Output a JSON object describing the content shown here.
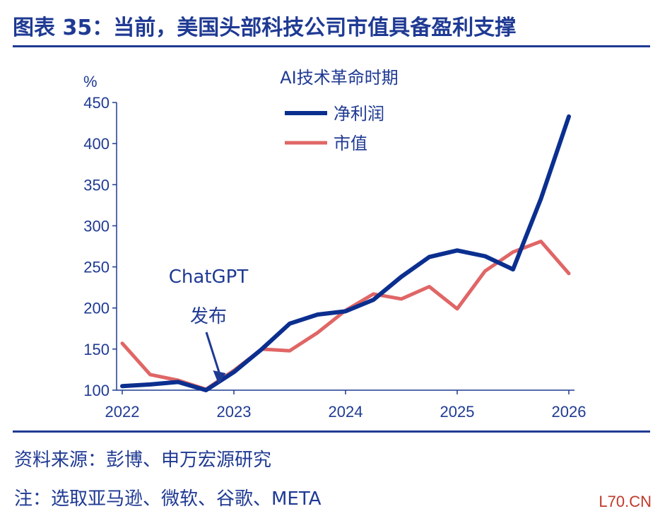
{
  "figure_title": "图表 35：当前，美国头部科技公司市值具备盈利支撑",
  "footer": {
    "source": "资料来源：彭博、申万宏源研究",
    "note": "注：选取亚马逊、微软、谷歌、META",
    "watermark": "L70.CN"
  },
  "colors": {
    "accent": "#1f3a93",
    "profit": "#0b2f8f",
    "market_cap": "#e06666"
  },
  "chart_data": {
    "type": "line",
    "title": "AI技术革命时期",
    "ylabel": "%",
    "ylim": [
      100,
      450
    ],
    "yticks": [
      "450",
      "400",
      "350",
      "300",
      "250",
      "200",
      "150",
      "100"
    ],
    "xticks": [
      "2022",
      "2023",
      "2024",
      "2025",
      "2026"
    ],
    "legend_position": "top-center",
    "annotation": {
      "line1": "ChatGPT",
      "line2": "发布",
      "x": 2022.87,
      "y": 100
    },
    "series": [
      {
        "name": "净利润",
        "x": [
          2022.0,
          2022.25,
          2022.5,
          2022.75,
          2023.0,
          2023.25,
          2023.5,
          2023.75,
          2024.0,
          2024.25,
          2024.5,
          2024.75,
          2025.0,
          2025.25,
          2025.5,
          2025.75,
          2026.0
        ],
        "values": [
          105,
          107,
          110,
          100,
          122,
          150,
          181,
          192,
          196,
          210,
          238,
          262,
          270,
          263,
          247,
          333,
          433
        ]
      },
      {
        "name": "市值",
        "x": [
          2022.0,
          2022.25,
          2022.5,
          2022.75,
          2023.0,
          2023.25,
          2023.5,
          2023.75,
          2024.0,
          2024.25,
          2024.5,
          2024.75,
          2025.0,
          2025.25,
          2025.5,
          2025.75,
          2026.0
        ],
        "values": [
          157,
          119,
          112,
          101,
          124,
          150,
          148,
          170,
          197,
          217,
          211,
          226,
          199,
          245,
          268,
          281,
          242
        ]
      }
    ]
  }
}
